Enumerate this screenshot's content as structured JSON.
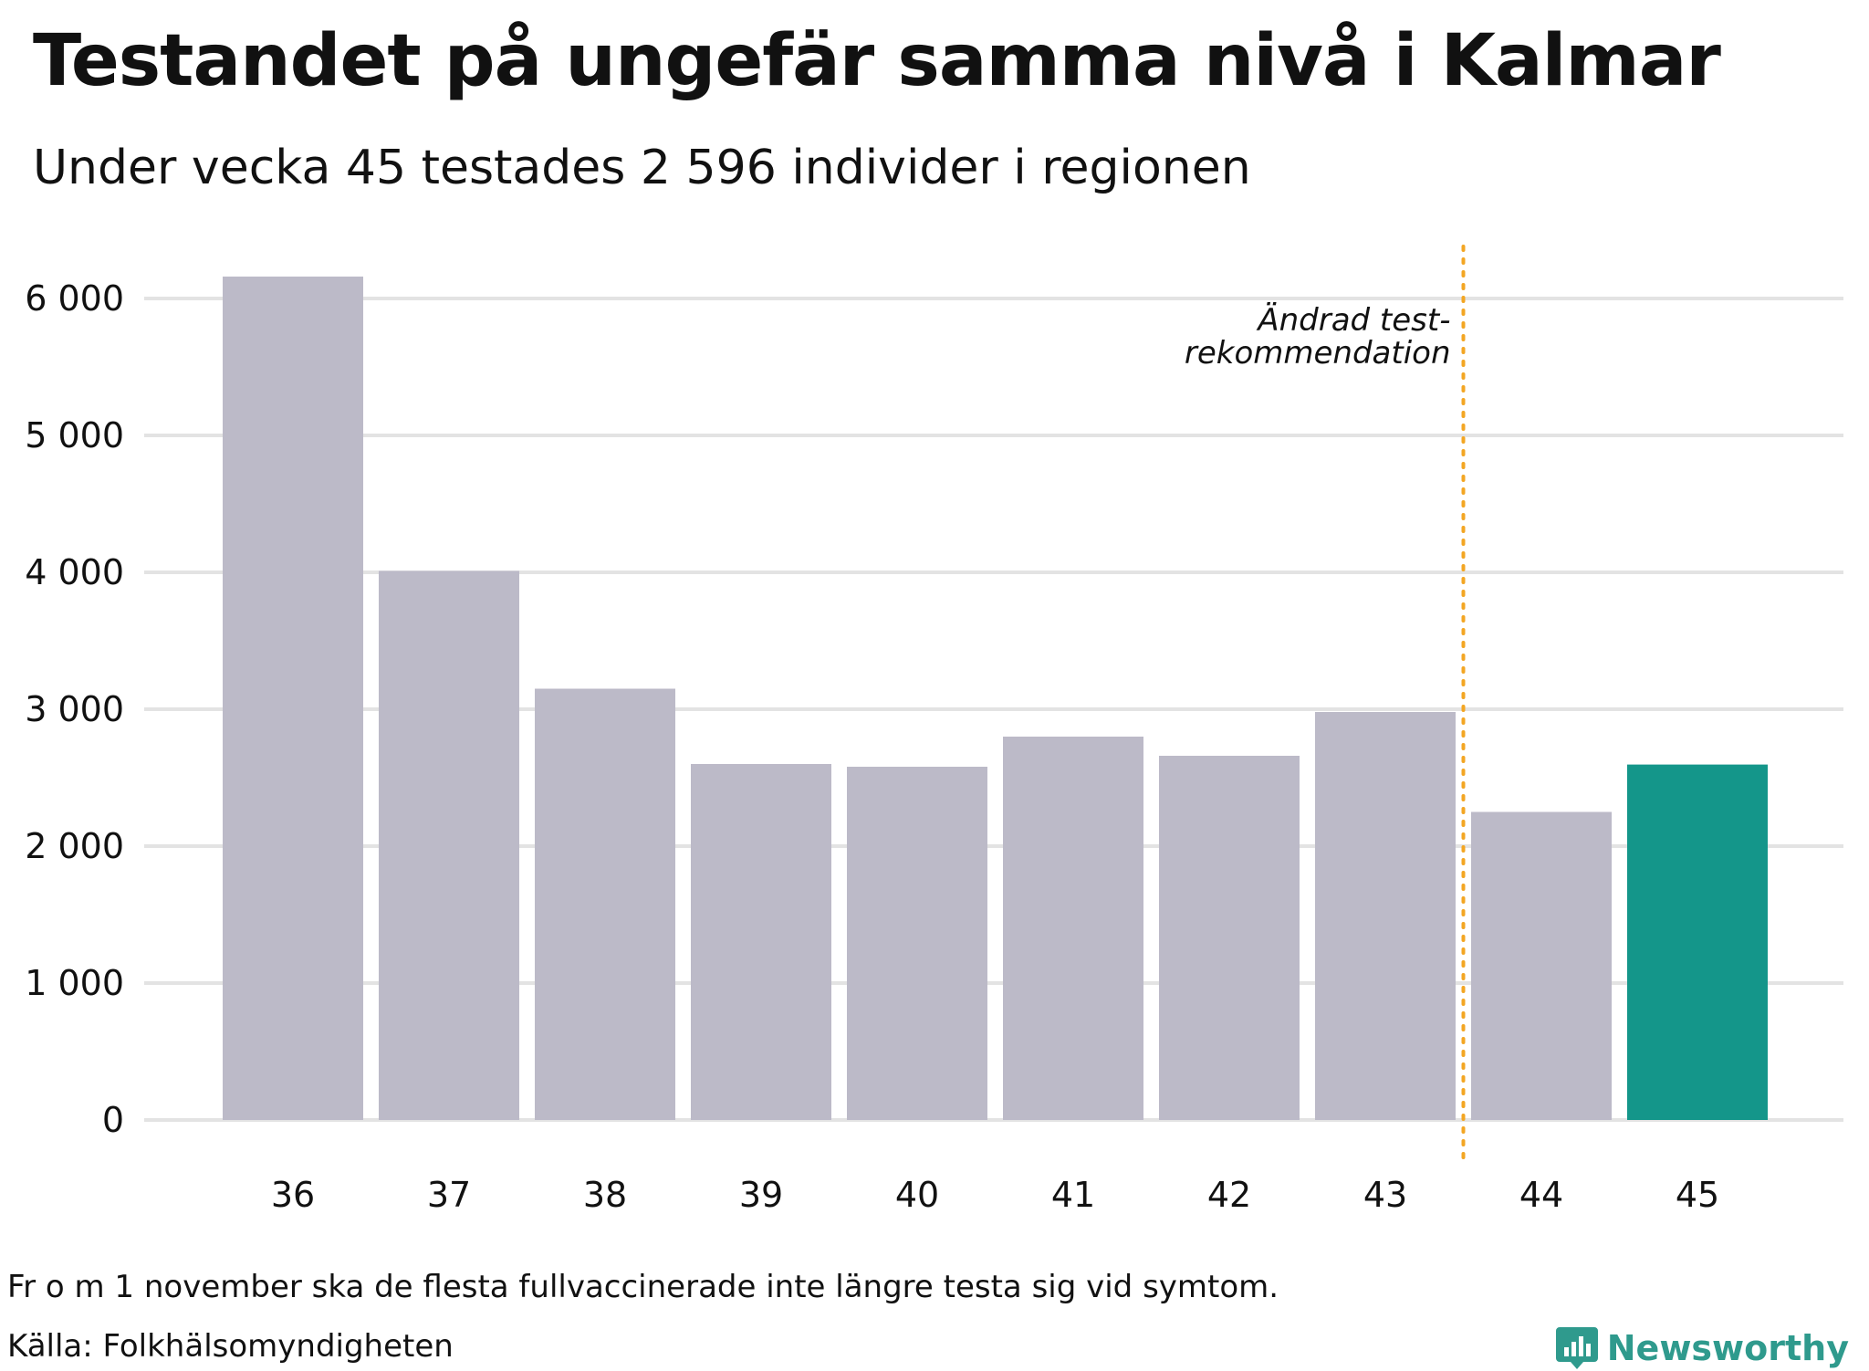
{
  "colors": {
    "bar": "#bcbac8",
    "highlight": "#14968a",
    "marker_line": "#f3a623",
    "brand": "#2f9a8d"
  },
  "brand": {
    "name": "Newsworthy",
    "icon": "chart-logo-icon"
  },
  "footer": {
    "note": "Fr o m 1 november ska de flesta fullvaccinerade inte längre testa sig vid symtom.",
    "source": "Källa: Folkhälsomyndigheten"
  },
  "chart_data": {
    "type": "bar",
    "title": "Testandet på ungefär samma nivå i Kalmar",
    "subtitle": "Under vecka 45 testades 2 596 individer i regionen",
    "xlabel": "",
    "ylabel": "",
    "categories": [
      "36",
      "37",
      "38",
      "39",
      "40",
      "41",
      "42",
      "43",
      "44",
      "45"
    ],
    "values": [
      6160,
      4010,
      3150,
      2600,
      2580,
      2800,
      2660,
      2980,
      2250,
      2596
    ],
    "highlight_category": "45",
    "ylim": [
      0,
      6000
    ],
    "yticks": [
      0,
      1000,
      2000,
      3000,
      4000,
      5000,
      6000
    ],
    "ytick_labels": [
      "0",
      "1 000",
      "2 000",
      "3 000",
      "4 000",
      "5 000",
      "6 000"
    ],
    "grid": true,
    "annotation": {
      "text_line1": "Ändrad test-",
      "text_line2": "rekommendation",
      "between": [
        "43",
        "44"
      ]
    }
  }
}
